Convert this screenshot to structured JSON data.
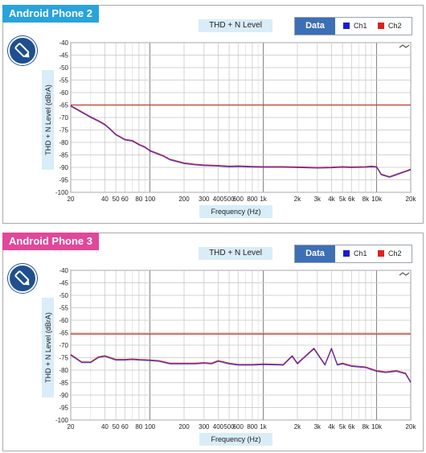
{
  "colors": {
    "ch1": "#1a1acc",
    "ch2": "#e02020",
    "limit_line": "#c0392b"
  },
  "chart_data": [
    {
      "type": "line",
      "panel_label": "Android Phone 2",
      "title": "THD + N Level",
      "xlabel": "Frequency (Hz)",
      "ylabel": "THD + N Level (dBrA)",
      "xscale": "log",
      "xlim": [
        20,
        20000
      ],
      "ylim": [
        -100,
        -40
      ],
      "x_tick_labels": [
        "20",
        "40",
        "50",
        "60",
        "80",
        "100",
        "200",
        "300",
        "400",
        "500",
        "600",
        "800",
        "1k",
        "2k",
        "3k",
        "4k",
        "5k",
        "6k",
        "8k",
        "10k",
        "20k"
      ],
      "y_tick_labels": [
        "-40",
        "-45",
        "-50",
        "-55",
        "-60",
        "-65",
        "-70",
        "-75",
        "-80",
        "-85",
        "-90",
        "-95",
        "-100"
      ],
      "grid": true,
      "legend": {
        "title": "Data",
        "entries": [
          "Ch1",
          "Ch2"
        ],
        "position": "top-right"
      },
      "reference_line": {
        "y": -65
      },
      "series": [
        {
          "name": "Ch1",
          "x": [
            20,
            25,
            30,
            35,
            40,
            45,
            50,
            60,
            70,
            80,
            90,
            100,
            130,
            150,
            200,
            250,
            300,
            400,
            500,
            600,
            800,
            1000,
            1500,
            2000,
            3000,
            4000,
            5000,
            6000,
            8000,
            9000,
            10000,
            11000,
            13000,
            15000,
            20000
          ],
          "y": [
            -65.5,
            -68,
            -70,
            -71.5,
            -73,
            -75,
            -77,
            -79,
            -79.5,
            -81,
            -82,
            -83.5,
            -85.5,
            -87,
            -88.5,
            -89,
            -89.3,
            -89.5,
            -89.8,
            -89.7,
            -89.9,
            -90,
            -90,
            -90.1,
            -90.3,
            -90.2,
            -90,
            -90.1,
            -90,
            -89.8,
            -90,
            -93,
            -94,
            -93,
            -91
          ],
          "y_offset_ch2": 0.3
        },
        {
          "name": "Ch2",
          "x": [
            20,
            25,
            30,
            35,
            40,
            45,
            50,
            60,
            70,
            80,
            90,
            100,
            130,
            150,
            200,
            250,
            300,
            400,
            500,
            600,
            800,
            1000,
            1500,
            2000,
            3000,
            4000,
            5000,
            6000,
            8000,
            9000,
            10000,
            11000,
            13000,
            15000,
            20000
          ],
          "y": [
            -65.2,
            -67.7,
            -69.7,
            -71.2,
            -72.7,
            -74.7,
            -76.7,
            -78.7,
            -79.2,
            -80.7,
            -81.7,
            -83.2,
            -85.2,
            -86.7,
            -88.2,
            -88.7,
            -89,
            -89.2,
            -89.5,
            -89.4,
            -89.6,
            -89.7,
            -89.7,
            -89.8,
            -90,
            -89.9,
            -89.7,
            -89.8,
            -89.7,
            -89.5,
            -89.7,
            -92.7,
            -93.7,
            -92.7,
            -90.7
          ]
        }
      ]
    },
    {
      "type": "line",
      "panel_label": "Android Phone 3",
      "title": "THD + N Level",
      "xlabel": "Frequency (Hz)",
      "ylabel": "THD + N Level (dBrA)",
      "xscale": "log",
      "xlim": [
        20,
        20000
      ],
      "ylim": [
        -100,
        -40
      ],
      "x_tick_labels": [
        "20",
        "40",
        "50",
        "60",
        "80",
        "100",
        "200",
        "300",
        "400",
        "500",
        "600",
        "800",
        "1k",
        "2k",
        "3k",
        "4k",
        "5k",
        "6k",
        "8k",
        "10k",
        "20k"
      ],
      "y_tick_labels": [
        "-40",
        "-45",
        "-50",
        "-55",
        "-60",
        "-65",
        "-70",
        "-75",
        "-80",
        "-85",
        "-90",
        "-95",
        "-100"
      ],
      "grid": true,
      "legend": {
        "title": "Data",
        "entries": [
          "Ch1",
          "Ch2"
        ],
        "position": "top-right"
      },
      "reference_line": {
        "y": -65.5
      },
      "series": [
        {
          "name": "Ch1",
          "x": [
            20,
            25,
            30,
            35,
            40,
            50,
            60,
            70,
            80,
            100,
            120,
            150,
            200,
            250,
            300,
            350,
            400,
            500,
            600,
            800,
            1000,
            1500,
            1800,
            2000,
            2500,
            2800,
            3000,
            3500,
            4000,
            4500,
            5000,
            6000,
            8000,
            10000,
            12000,
            15000,
            18000,
            20000
          ],
          "y": [
            -74,
            -77,
            -77,
            -75,
            -74.5,
            -76,
            -76,
            -75.8,
            -76,
            -76.2,
            -76.5,
            -77.5,
            -77.5,
            -77.5,
            -77.3,
            -77.5,
            -76.5,
            -77.5,
            -78,
            -78,
            -77.8,
            -78,
            -74.5,
            -77.5,
            -73.5,
            -71.5,
            -73.5,
            -78,
            -71.5,
            -78,
            -77.5,
            -78.5,
            -79,
            -80.5,
            -81,
            -80.5,
            -81.5,
            -85
          ],
          "y_offset_ch2": 0.3
        },
        {
          "name": "Ch2",
          "x": [
            20,
            25,
            30,
            35,
            40,
            50,
            60,
            70,
            80,
            100,
            120,
            150,
            200,
            250,
            300,
            350,
            400,
            500,
            600,
            800,
            1000,
            1500,
            1800,
            2000,
            2500,
            2800,
            3000,
            3500,
            4000,
            4500,
            5000,
            6000,
            8000,
            10000,
            12000,
            15000,
            18000,
            20000
          ],
          "y": [
            -73.7,
            -76.7,
            -76.7,
            -74.7,
            -74.2,
            -75.7,
            -75.7,
            -75.5,
            -75.7,
            -75.9,
            -76.2,
            -77.2,
            -77.2,
            -77.2,
            -77,
            -77.2,
            -76.2,
            -77.2,
            -77.7,
            -77.7,
            -77.5,
            -77.7,
            -74.2,
            -77.2,
            -73.2,
            -71.2,
            -73.2,
            -77.7,
            -71.2,
            -77.7,
            -77.2,
            -78.2,
            -78.7,
            -80.2,
            -80.7,
            -80.2,
            -81.2,
            -84.7
          ]
        }
      ]
    }
  ]
}
